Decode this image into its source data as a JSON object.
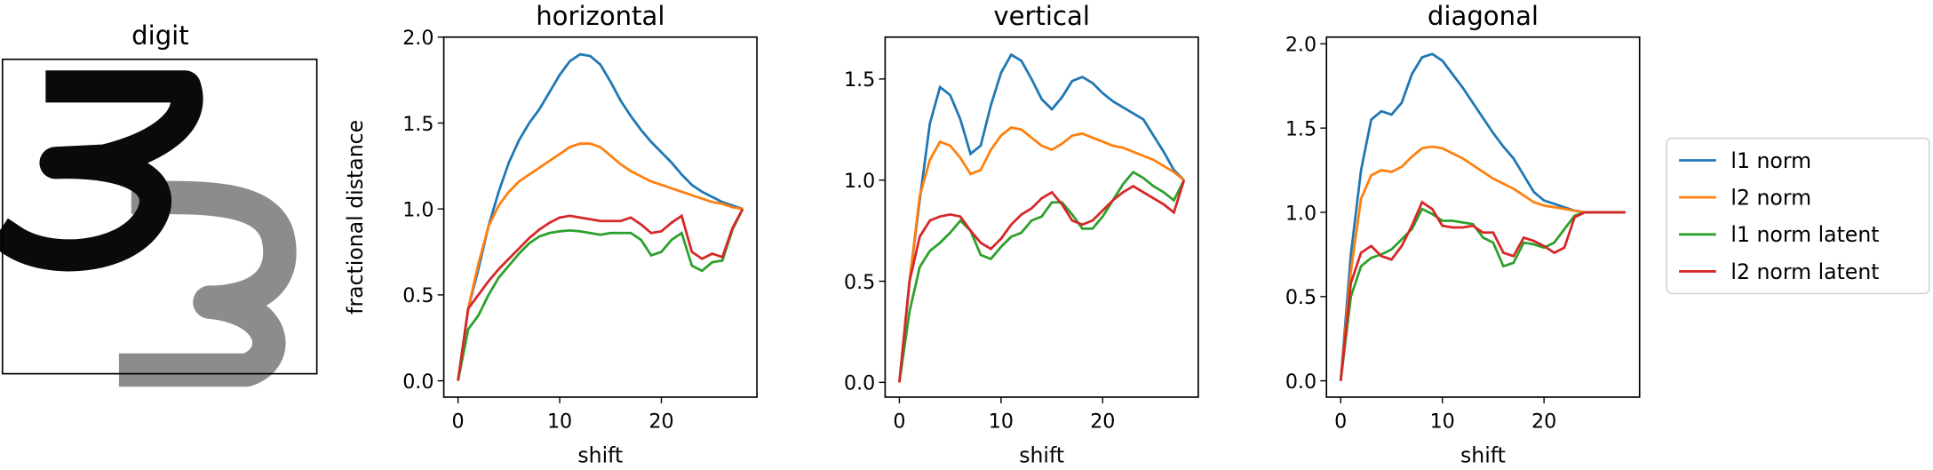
{
  "digit_panel": {
    "title": "digit"
  },
  "chart_data": [
    {
      "type": "line",
      "title": "horizontal",
      "xlabel": "shift",
      "ylabel": "fractional distance",
      "x": [
        0,
        1,
        2,
        3,
        4,
        5,
        6,
        7,
        8,
        9,
        10,
        11,
        12,
        13,
        14,
        15,
        16,
        17,
        18,
        19,
        20,
        21,
        22,
        23,
        24,
        25,
        26,
        27,
        28
      ],
      "xlim": [
        -1.4,
        29.4
      ],
      "xticks": [
        0,
        10,
        20
      ],
      "ylim": [
        -0.095,
        2.0
      ],
      "yticks": [
        {
          "value": 0,
          "label": "0.0"
        },
        {
          "value": 0.5,
          "label": "0.5"
        },
        {
          "value": 1,
          "label": "1.0"
        },
        {
          "value": 1.5,
          "label": "1.5"
        },
        {
          "value": 2,
          "label": "2.0"
        }
      ],
      "legend": "outside right",
      "series": [
        {
          "name": "l1 norm",
          "color": "#1f77b4",
          "values": [
            0,
            0.42,
            0.65,
            0.9,
            1.1,
            1.27,
            1.4,
            1.5,
            1.58,
            1.68,
            1.78,
            1.86,
            1.9,
            1.89,
            1.84,
            1.74,
            1.63,
            1.54,
            1.46,
            1.39,
            1.33,
            1.27,
            1.2,
            1.14,
            1.1,
            1.07,
            1.04,
            1.02,
            1.0
          ]
        },
        {
          "name": "l2 norm",
          "color": "#ff7f0e",
          "values": [
            0,
            0.42,
            0.68,
            0.9,
            1.02,
            1.1,
            1.16,
            1.2,
            1.24,
            1.28,
            1.32,
            1.36,
            1.38,
            1.38,
            1.36,
            1.31,
            1.26,
            1.22,
            1.19,
            1.16,
            1.14,
            1.12,
            1.1,
            1.08,
            1.06,
            1.04,
            1.03,
            1.01,
            1.0
          ]
        },
        {
          "name": "l1 norm latent",
          "color": "#2ca02c",
          "values": [
            0,
            0.3,
            0.38,
            0.5,
            0.6,
            0.67,
            0.74,
            0.8,
            0.84,
            0.86,
            0.87,
            0.875,
            0.87,
            0.86,
            0.85,
            0.86,
            0.86,
            0.86,
            0.82,
            0.73,
            0.75,
            0.82,
            0.86,
            0.67,
            0.64,
            0.69,
            0.7,
            0.88,
            1.0
          ]
        },
        {
          "name": "l2 norm latent",
          "color": "#d62728",
          "values": [
            0,
            0.42,
            0.5,
            0.58,
            0.65,
            0.71,
            0.77,
            0.83,
            0.88,
            0.92,
            0.95,
            0.96,
            0.95,
            0.94,
            0.93,
            0.93,
            0.93,
            0.95,
            0.91,
            0.86,
            0.87,
            0.92,
            0.96,
            0.75,
            0.71,
            0.74,
            0.72,
            0.89,
            1.0
          ]
        }
      ]
    },
    {
      "type": "line",
      "title": "vertical",
      "xlabel": "shift",
      "x": [
        0,
        1,
        2,
        3,
        4,
        5,
        6,
        7,
        8,
        9,
        10,
        11,
        12,
        13,
        14,
        15,
        16,
        17,
        18,
        19,
        20,
        21,
        22,
        23,
        24,
        25,
        26,
        27,
        28
      ],
      "xlim": [
        -1.4,
        29.4
      ],
      "xticks": [
        0,
        10,
        20
      ],
      "ylim": [
        -0.073,
        1.707
      ],
      "yticks": [
        {
          "value": 0,
          "label": "0.0"
        },
        {
          "value": 0.5,
          "label": "0.5"
        },
        {
          "value": 1,
          "label": "1.0"
        },
        {
          "value": 1.5,
          "label": "1.5"
        }
      ],
      "series": [
        {
          "name": "l1 norm",
          "color": "#1f77b4",
          "values": [
            0,
            0.5,
            0.9,
            1.28,
            1.46,
            1.42,
            1.3,
            1.13,
            1.17,
            1.37,
            1.53,
            1.62,
            1.59,
            1.5,
            1.4,
            1.35,
            1.41,
            1.49,
            1.51,
            1.48,
            1.43,
            1.39,
            1.36,
            1.33,
            1.3,
            1.22,
            1.14,
            1.05,
            1.0
          ]
        },
        {
          "name": "l2 norm",
          "color": "#ff7f0e",
          "values": [
            0,
            0.5,
            0.92,
            1.1,
            1.19,
            1.17,
            1.11,
            1.03,
            1.05,
            1.15,
            1.22,
            1.26,
            1.25,
            1.21,
            1.17,
            1.15,
            1.18,
            1.22,
            1.23,
            1.21,
            1.19,
            1.17,
            1.16,
            1.14,
            1.12,
            1.1,
            1.07,
            1.04,
            1.0
          ]
        },
        {
          "name": "l1 norm latent",
          "color": "#2ca02c",
          "values": [
            0,
            0.35,
            0.57,
            0.65,
            0.69,
            0.74,
            0.8,
            0.75,
            0.63,
            0.61,
            0.67,
            0.72,
            0.74,
            0.8,
            0.82,
            0.89,
            0.89,
            0.83,
            0.76,
            0.76,
            0.82,
            0.9,
            0.98,
            1.04,
            1.01,
            0.97,
            0.94,
            0.9,
            1.0
          ]
        },
        {
          "name": "l2 norm latent",
          "color": "#d62728",
          "values": [
            0,
            0.5,
            0.72,
            0.8,
            0.82,
            0.83,
            0.82,
            0.75,
            0.69,
            0.66,
            0.71,
            0.78,
            0.83,
            0.86,
            0.91,
            0.94,
            0.88,
            0.8,
            0.78,
            0.8,
            0.85,
            0.9,
            0.94,
            0.97,
            0.94,
            0.91,
            0.88,
            0.84,
            1.0
          ]
        }
      ]
    },
    {
      "type": "line",
      "title": "diagonal",
      "xlabel": "shift",
      "x": [
        0,
        1,
        2,
        3,
        4,
        5,
        6,
        7,
        8,
        9,
        10,
        11,
        12,
        13,
        14,
        15,
        16,
        17,
        18,
        19,
        20,
        21,
        22,
        23,
        24,
        25,
        26,
        27,
        28
      ],
      "xlim": [
        -1.4,
        29.4
      ],
      "xticks": [
        0,
        10,
        20
      ],
      "ylim": [
        -0.097,
        2.04
      ],
      "yticks": [
        {
          "value": 0,
          "label": "0.0"
        },
        {
          "value": 0.5,
          "label": "0.5"
        },
        {
          "value": 1,
          "label": "1.0"
        },
        {
          "value": 1.5,
          "label": "1.5"
        },
        {
          "value": 2,
          "label": "2.0"
        }
      ],
      "series": [
        {
          "name": "l1 norm",
          "color": "#1f77b4",
          "values": [
            0,
            0.75,
            1.25,
            1.55,
            1.6,
            1.58,
            1.65,
            1.82,
            1.92,
            1.94,
            1.9,
            1.82,
            1.74,
            1.65,
            1.56,
            1.47,
            1.39,
            1.32,
            1.22,
            1.12,
            1.07,
            1.05,
            1.03,
            1.01,
            1.0,
            1.0,
            1.0,
            1.0,
            1.0
          ]
        },
        {
          "name": "l2 norm",
          "color": "#ff7f0e",
          "values": [
            0,
            0.65,
            1.08,
            1.22,
            1.25,
            1.24,
            1.27,
            1.33,
            1.38,
            1.39,
            1.38,
            1.35,
            1.32,
            1.28,
            1.24,
            1.2,
            1.17,
            1.14,
            1.1,
            1.06,
            1.04,
            1.03,
            1.02,
            1.01,
            1.0,
            1.0,
            1.0,
            1.0,
            1.0
          ]
        },
        {
          "name": "l1 norm latent",
          "color": "#2ca02c",
          "values": [
            0,
            0.5,
            0.68,
            0.73,
            0.75,
            0.78,
            0.84,
            0.9,
            1.02,
            0.99,
            0.95,
            0.95,
            0.94,
            0.93,
            0.85,
            0.82,
            0.68,
            0.7,
            0.82,
            0.81,
            0.79,
            0.82,
            0.9,
            0.98,
            1.0,
            1.0,
            1.0,
            1.0,
            1.0
          ]
        },
        {
          "name": "l2 norm latent",
          "color": "#d62728",
          "values": [
            0,
            0.58,
            0.76,
            0.8,
            0.74,
            0.72,
            0.8,
            0.92,
            1.06,
            1.02,
            0.92,
            0.91,
            0.91,
            0.92,
            0.88,
            0.88,
            0.76,
            0.74,
            0.85,
            0.83,
            0.8,
            0.76,
            0.79,
            0.97,
            1.0,
            1.0,
            1.0,
            1.0,
            1.0
          ]
        }
      ]
    }
  ]
}
